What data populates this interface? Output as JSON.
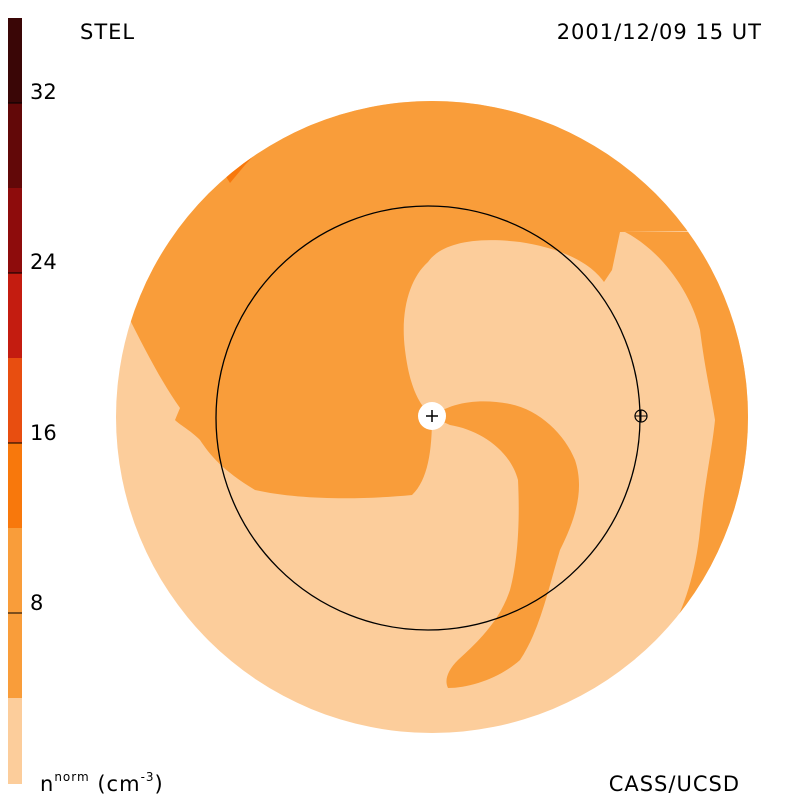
{
  "header": {
    "instrument": "STEL",
    "timestamp": "2001/12/09 15 UT"
  },
  "footer": {
    "credit": "CASS/UCSD",
    "unit_base": "n",
    "unit_sup": "norm",
    "unit_paren": "(cm",
    "unit_exp": "-3",
    "unit_close": ")"
  },
  "colorbar": {
    "ticks": [
      "32",
      "24",
      "16",
      "8"
    ],
    "bands": [
      "#fccd9b",
      "#f99d3a",
      "#f8780c",
      "#e84e10",
      "#c41c10",
      "#8e0c0c",
      "#620808",
      "#3a0606",
      "#1f0404"
    ]
  },
  "map": {
    "disk_color": "#fccd9b",
    "band_color": "#f99d3a",
    "accent_color": "#f8780c",
    "sun_marker": "+",
    "earth_marker": "⊕"
  }
}
